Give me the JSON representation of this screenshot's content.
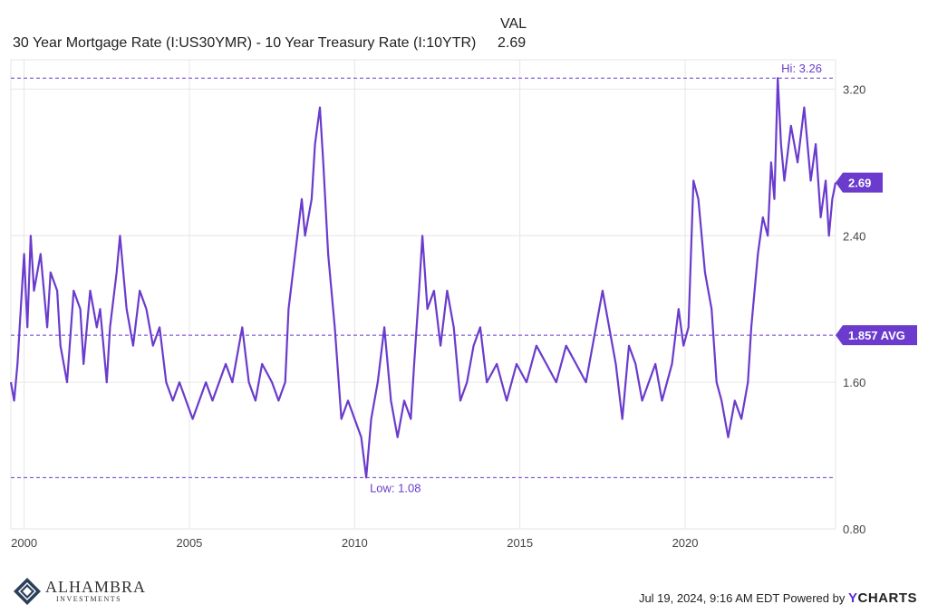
{
  "legend": {
    "value_header": "VAL",
    "series_name": "30 Year Mortgage Rate (I:US30YMR) - 10 Year Treasury Rate (I:10YTR)",
    "series_value": "2.69"
  },
  "footer": {
    "timestamp": "Jul 19, 2024, 9:16 AM EDT",
    "powered_by": "Powered by",
    "ycharts_y": "Y",
    "ycharts_rest": "CHARTS",
    "logo_main": "ALHAMBRA",
    "logo_sub": "INVESTMENTS"
  },
  "colors": {
    "line": "#6a3bcc",
    "ref": "#6a3bcc",
    "grid": "#e6e6e6"
  },
  "chart_data": {
    "type": "line",
    "title": "",
    "xlabel": "",
    "ylabel": "",
    "xlim": [
      1999.6,
      2024.55
    ],
    "ylim": [
      0.8,
      3.36
    ],
    "x_ticks": [
      2000,
      2005,
      2010,
      2015,
      2020
    ],
    "x_tick_labels": [
      "2000",
      "2005",
      "2010",
      "2015",
      "2020"
    ],
    "y_ticks": [
      0.8,
      1.6,
      2.4,
      3.2
    ],
    "y_tick_labels": [
      "0.80",
      "1.60",
      "2.40",
      "3.20"
    ],
    "grid": true,
    "series": [
      {
        "name": "30 Year Mortgage Rate (I:US30YMR) - 10 Year Treasury Rate (I:10YTR)",
        "points": [
          [
            1999.6,
            1.6
          ],
          [
            1999.7,
            1.5
          ],
          [
            1999.8,
            1.7
          ],
          [
            1999.9,
            2.0
          ],
          [
            2000.0,
            2.3
          ],
          [
            2000.1,
            1.9
          ],
          [
            2000.2,
            2.4
          ],
          [
            2000.3,
            2.1
          ],
          [
            2000.5,
            2.3
          ],
          [
            2000.7,
            1.9
          ],
          [
            2000.8,
            2.2
          ],
          [
            2001.0,
            2.1
          ],
          [
            2001.1,
            1.8
          ],
          [
            2001.3,
            1.6
          ],
          [
            2001.5,
            2.1
          ],
          [
            2001.7,
            2.0
          ],
          [
            2001.8,
            1.7
          ],
          [
            2002.0,
            2.1
          ],
          [
            2002.2,
            1.9
          ],
          [
            2002.3,
            2.0
          ],
          [
            2002.5,
            1.6
          ],
          [
            2002.6,
            1.9
          ],
          [
            2002.8,
            2.2
          ],
          [
            2002.9,
            2.4
          ],
          [
            2003.1,
            2.0
          ],
          [
            2003.3,
            1.8
          ],
          [
            2003.5,
            2.1
          ],
          [
            2003.7,
            2.0
          ],
          [
            2003.9,
            1.8
          ],
          [
            2004.1,
            1.9
          ],
          [
            2004.3,
            1.6
          ],
          [
            2004.5,
            1.5
          ],
          [
            2004.7,
            1.6
          ],
          [
            2004.9,
            1.5
          ],
          [
            2005.1,
            1.4
          ],
          [
            2005.3,
            1.5
          ],
          [
            2005.5,
            1.6
          ],
          [
            2005.7,
            1.5
          ],
          [
            2005.9,
            1.6
          ],
          [
            2006.1,
            1.7
          ],
          [
            2006.3,
            1.6
          ],
          [
            2006.6,
            1.9
          ],
          [
            2006.8,
            1.6
          ],
          [
            2007.0,
            1.5
          ],
          [
            2007.2,
            1.7
          ],
          [
            2007.5,
            1.6
          ],
          [
            2007.7,
            1.5
          ],
          [
            2007.9,
            1.6
          ],
          [
            2008.0,
            2.0
          ],
          [
            2008.2,
            2.3
          ],
          [
            2008.4,
            2.6
          ],
          [
            2008.5,
            2.4
          ],
          [
            2008.7,
            2.6
          ],
          [
            2008.8,
            2.9
          ],
          [
            2008.95,
            3.1
          ],
          [
            2009.05,
            2.8
          ],
          [
            2009.2,
            2.3
          ],
          [
            2009.4,
            1.9
          ],
          [
            2009.6,
            1.4
          ],
          [
            2009.8,
            1.5
          ],
          [
            2010.0,
            1.4
          ],
          [
            2010.2,
            1.3
          ],
          [
            2010.35,
            1.08
          ],
          [
            2010.5,
            1.4
          ],
          [
            2010.7,
            1.6
          ],
          [
            2010.9,
            1.9
          ],
          [
            2011.1,
            1.5
          ],
          [
            2011.3,
            1.3
          ],
          [
            2011.5,
            1.5
          ],
          [
            2011.7,
            1.4
          ],
          [
            2011.8,
            1.7
          ],
          [
            2011.95,
            2.1
          ],
          [
            2012.05,
            2.4
          ],
          [
            2012.2,
            2.0
          ],
          [
            2012.4,
            2.1
          ],
          [
            2012.6,
            1.8
          ],
          [
            2012.8,
            2.1
          ],
          [
            2013.0,
            1.9
          ],
          [
            2013.2,
            1.5
          ],
          [
            2013.4,
            1.6
          ],
          [
            2013.6,
            1.8
          ],
          [
            2013.8,
            1.9
          ],
          [
            2014.0,
            1.6
          ],
          [
            2014.3,
            1.7
          ],
          [
            2014.6,
            1.5
          ],
          [
            2014.9,
            1.7
          ],
          [
            2015.2,
            1.6
          ],
          [
            2015.5,
            1.8
          ],
          [
            2015.8,
            1.7
          ],
          [
            2016.1,
            1.6
          ],
          [
            2016.4,
            1.8
          ],
          [
            2016.7,
            1.7
          ],
          [
            2017.0,
            1.6
          ],
          [
            2017.2,
            1.8
          ],
          [
            2017.5,
            2.1
          ],
          [
            2017.7,
            1.9
          ],
          [
            2017.9,
            1.7
          ],
          [
            2018.1,
            1.4
          ],
          [
            2018.3,
            1.8
          ],
          [
            2018.5,
            1.7
          ],
          [
            2018.7,
            1.5
          ],
          [
            2018.9,
            1.6
          ],
          [
            2019.1,
            1.7
          ],
          [
            2019.3,
            1.5
          ],
          [
            2019.6,
            1.7
          ],
          [
            2019.8,
            2.0
          ],
          [
            2019.95,
            1.8
          ],
          [
            2020.1,
            1.9
          ],
          [
            2020.25,
            2.7
          ],
          [
            2020.4,
            2.6
          ],
          [
            2020.6,
            2.2
          ],
          [
            2020.8,
            2.0
          ],
          [
            2020.95,
            1.6
          ],
          [
            2021.1,
            1.5
          ],
          [
            2021.3,
            1.3
          ],
          [
            2021.5,
            1.5
          ],
          [
            2021.7,
            1.4
          ],
          [
            2021.9,
            1.6
          ],
          [
            2022.0,
            1.9
          ],
          [
            2022.2,
            2.3
          ],
          [
            2022.35,
            2.5
          ],
          [
            2022.5,
            2.4
          ],
          [
            2022.6,
            2.8
          ],
          [
            2022.7,
            2.6
          ],
          [
            2022.8,
            3.26
          ],
          [
            2022.9,
            2.9
          ],
          [
            2023.0,
            2.7
          ],
          [
            2023.2,
            3.0
          ],
          [
            2023.4,
            2.8
          ],
          [
            2023.6,
            3.1
          ],
          [
            2023.8,
            2.7
          ],
          [
            2023.95,
            2.9
          ],
          [
            2024.1,
            2.5
          ],
          [
            2024.25,
            2.7
          ],
          [
            2024.35,
            2.4
          ],
          [
            2024.45,
            2.6
          ],
          [
            2024.55,
            2.69
          ]
        ]
      }
    ],
    "reference_lines": [
      {
        "value": 3.26,
        "label": "Hi: 3.26",
        "label_x": 2022.8
      },
      {
        "value": 1.857,
        "label": "1.857 AVG"
      },
      {
        "value": 1.08,
        "label": "Low: 1.08",
        "label_x": 2010.35
      }
    ],
    "last_value_label": "2.69"
  }
}
